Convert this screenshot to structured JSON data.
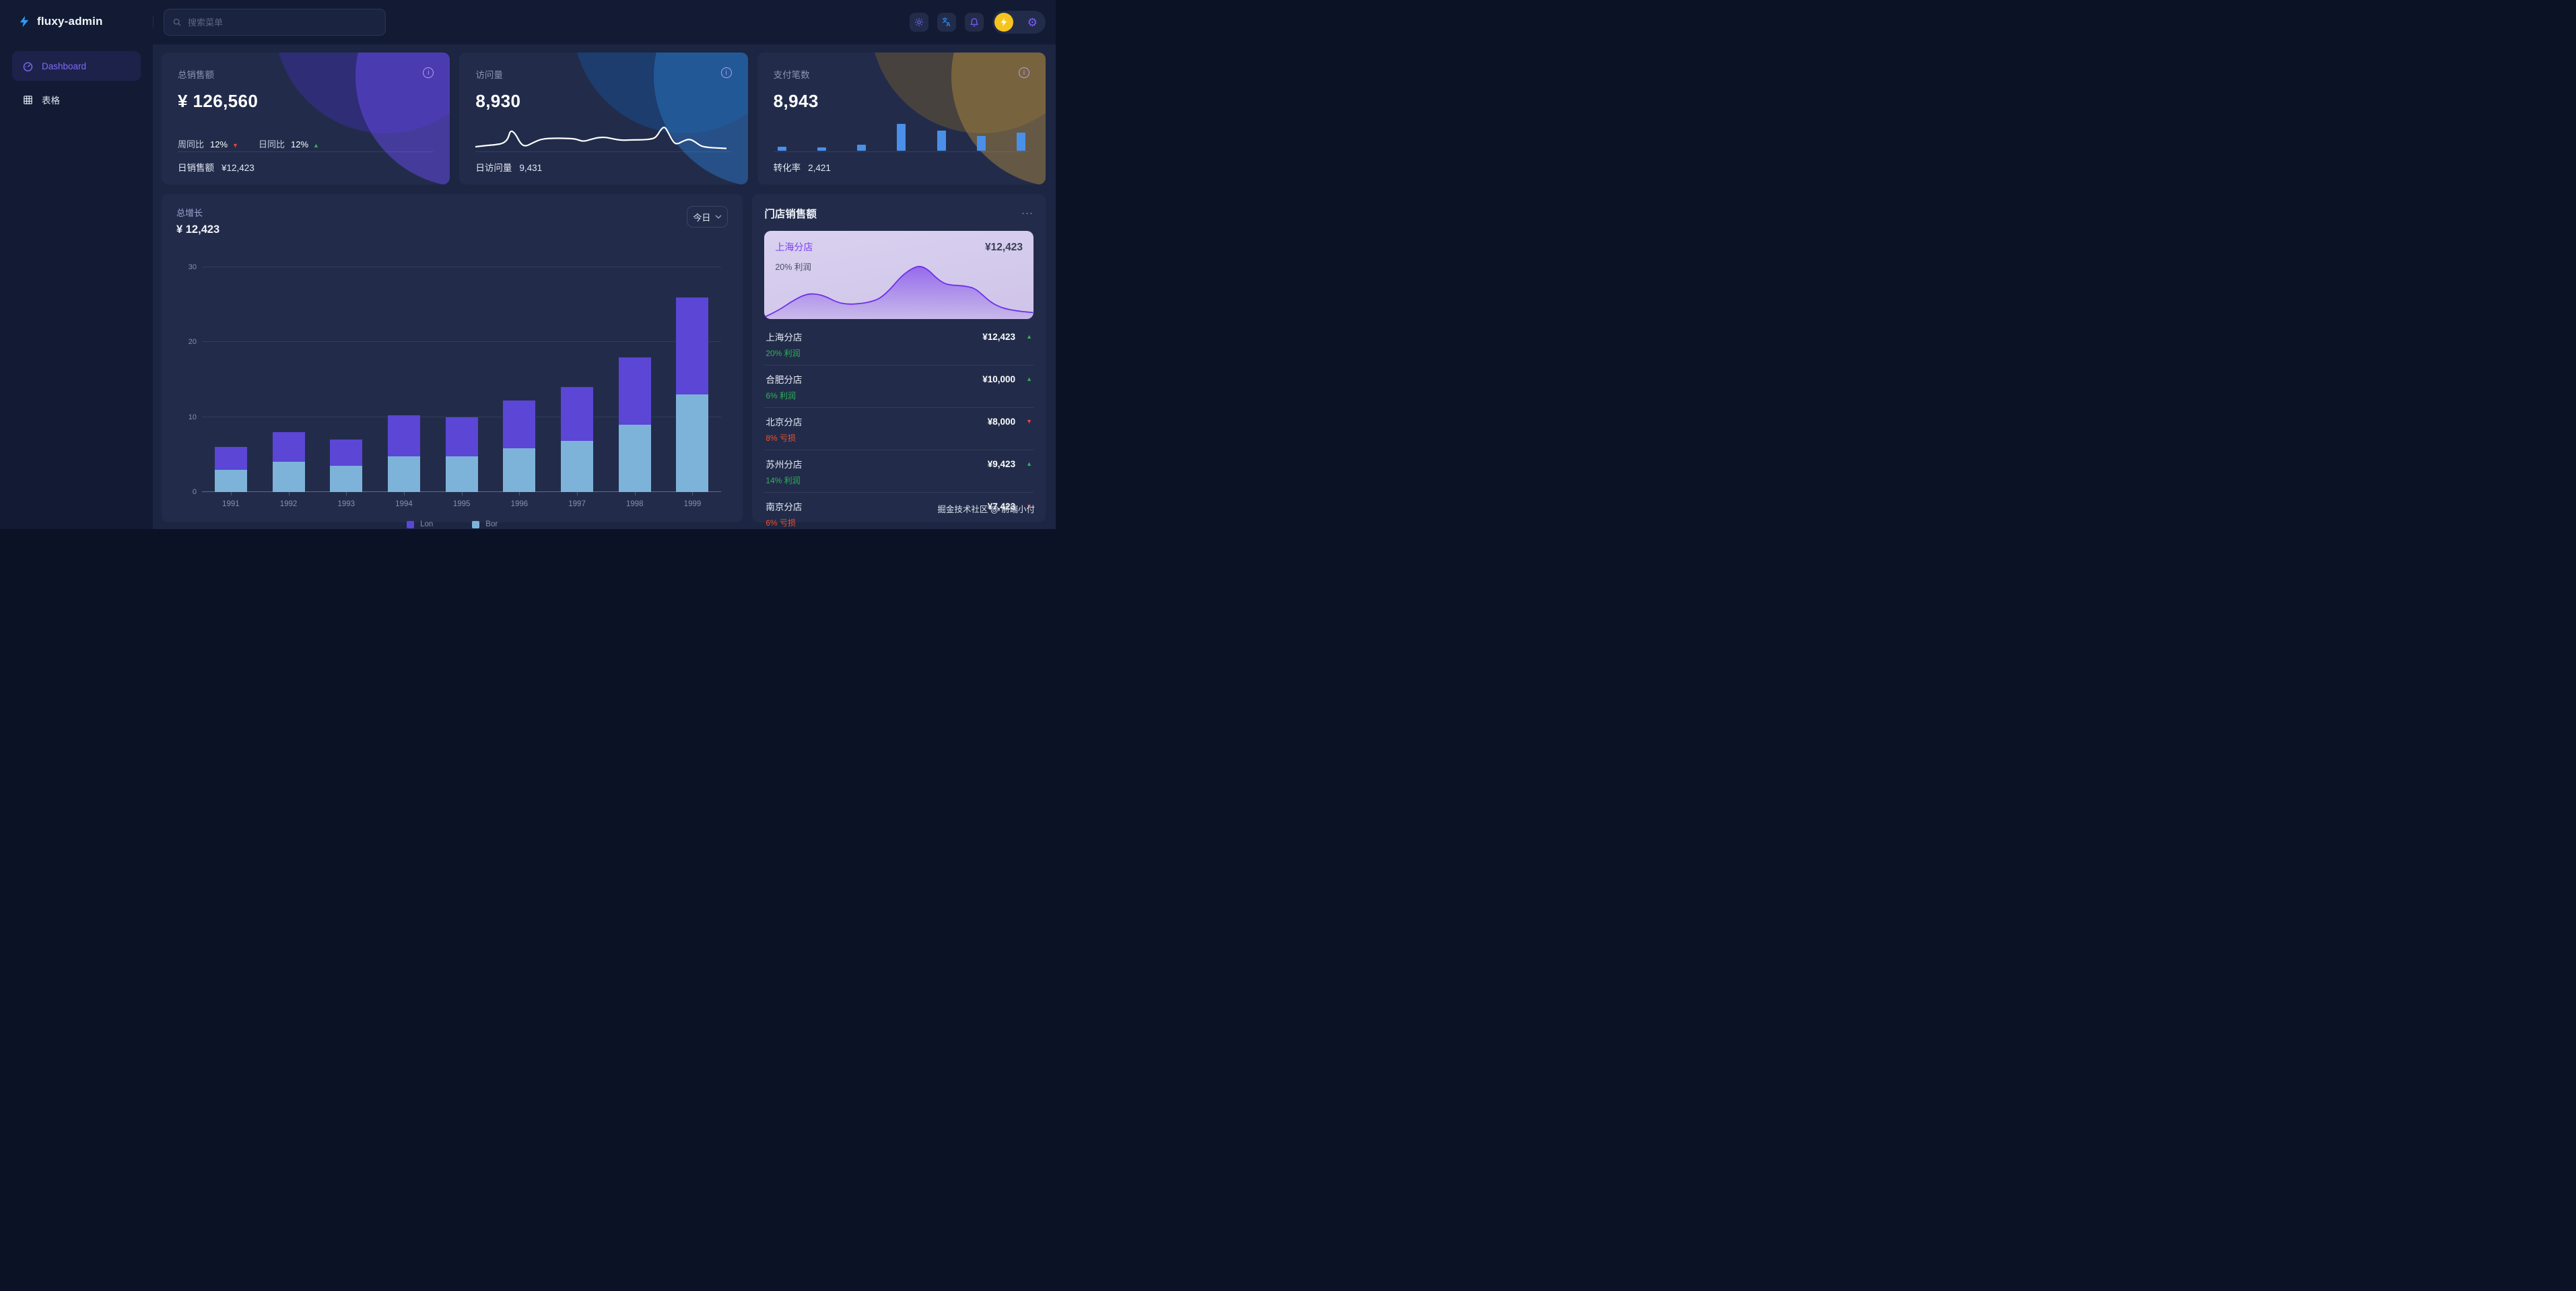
{
  "sidebar": {
    "logo_text": "fluxy-admin",
    "items": [
      {
        "label": "Dashboard",
        "active": true
      },
      {
        "label": "表格",
        "active": false
      }
    ]
  },
  "topbar": {
    "search_placeholder": "搜索菜单",
    "icons": [
      "brightness-icon",
      "translate-icon",
      "bell-icon",
      "lightning-icon",
      "gear-icon"
    ]
  },
  "stat_cards": [
    {
      "title": "总销售额",
      "value": "¥ 126,560",
      "stats": [
        {
          "label": "周同比",
          "value": "12%",
          "trend": "down"
        },
        {
          "label": "日同比",
          "value": "12%",
          "trend": "up"
        }
      ],
      "footer_label": "日销售额",
      "footer_value": "¥12,423"
    },
    {
      "title": "访问量",
      "value": "8,930",
      "footer_label": "日访问量",
      "footer_value": "9,431"
    },
    {
      "title": "支付笔数",
      "value": "8,943",
      "footer_label": "转化率",
      "footer_value": "2,421"
    }
  ],
  "growth": {
    "title": "总增长",
    "value": "¥ 12,423",
    "range_label": "今日"
  },
  "stores": {
    "title": "门店销售额",
    "more_label": "···",
    "featured": {
      "name": "上海分店",
      "value": "¥12,423",
      "profit": "20% 利润"
    },
    "items": [
      {
        "name": "上海分店",
        "value": "¥12,423",
        "profit": "20% 利润",
        "trend": "up"
      },
      {
        "name": "合肥分店",
        "value": "¥10,000",
        "profit": "6% 利润",
        "trend": "up"
      },
      {
        "name": "北京分店",
        "value": "¥8,000",
        "profit": "8% 亏损",
        "trend": "down"
      },
      {
        "name": "苏州分店",
        "value": "¥9,423",
        "profit": "14% 利润",
        "trend": "up"
      },
      {
        "name": "南京分店",
        "value": "¥7,423",
        "profit": "6% 亏损",
        "trend": "down"
      }
    ],
    "watermark": "掘金技术社区 @ 前端小付"
  },
  "chart_data": [
    {
      "id": "growth-stacked-bar",
      "type": "bar",
      "stacked": true,
      "title": "总增长",
      "categories": [
        "1991",
        "1992",
        "1993",
        "1994",
        "1995",
        "1996",
        "1997",
        "1998",
        "1999"
      ],
      "series": [
        {
          "name": "Lon",
          "color": "#5b46d6",
          "values": [
            3,
            4,
            3.5,
            5.4,
            5.2,
            6.4,
            7.2,
            9,
            13
          ]
        },
        {
          "name": "Bor",
          "color": "#7db3d9",
          "values": [
            3,
            4,
            3.5,
            4.8,
            4.8,
            5.8,
            6.8,
            9,
            13
          ]
        }
      ],
      "ylim": [
        0,
        30
      ],
      "yticks": [
        0,
        10,
        20,
        30
      ],
      "grid": true,
      "legend_position": "bottom"
    },
    {
      "id": "visits-sparkline",
      "type": "line",
      "color": "#ffffff",
      "points": [
        [
          0,
          12
        ],
        [
          4,
          17
        ],
        [
          8,
          21
        ],
        [
          11,
          26
        ],
        [
          13,
          45
        ],
        [
          14,
          85
        ],
        [
          16,
          68
        ],
        [
          18,
          25
        ],
        [
          20,
          13
        ],
        [
          23,
          30
        ],
        [
          26,
          44
        ],
        [
          29,
          48
        ],
        [
          33,
          49
        ],
        [
          37,
          48
        ],
        [
          40,
          46
        ],
        [
          43,
          34
        ],
        [
          46,
          44
        ],
        [
          49,
          52
        ],
        [
          52,
          53
        ],
        [
          55,
          46
        ],
        [
          58,
          40
        ],
        [
          61,
          41
        ],
        [
          64,
          42
        ],
        [
          67,
          42
        ],
        [
          70,
          45
        ],
        [
          72,
          52
        ],
        [
          74,
          88
        ],
        [
          75.5,
          100
        ],
        [
          77,
          70
        ],
        [
          79,
          30
        ],
        [
          80.5,
          23
        ],
        [
          83,
          38
        ],
        [
          85.5,
          46
        ],
        [
          88,
          30
        ],
        [
          90,
          14
        ],
        [
          93,
          9
        ],
        [
          96,
          7
        ],
        [
          100,
          5
        ]
      ]
    },
    {
      "id": "payments-mini-bar",
      "type": "bar",
      "color": "#4a8fe8",
      "values": [
        14,
        12,
        22,
        100,
        76,
        55,
        68
      ]
    },
    {
      "id": "store-area",
      "type": "area",
      "line_color": "#6d2fe8",
      "fill_color": "#7c45ec",
      "points": [
        [
          0,
          0
        ],
        [
          5,
          12
        ],
        [
          10,
          30
        ],
        [
          15,
          44
        ],
        [
          19,
          46
        ],
        [
          23,
          40
        ],
        [
          27,
          29
        ],
        [
          31,
          25
        ],
        [
          35,
          26
        ],
        [
          39,
          29
        ],
        [
          43,
          36
        ],
        [
          47,
          55
        ],
        [
          51,
          80
        ],
        [
          55,
          95
        ],
        [
          58,
          100
        ],
        [
          61,
          92
        ],
        [
          64,
          76
        ],
        [
          67,
          65
        ],
        [
          70,
          62
        ],
        [
          74,
          61
        ],
        [
          78,
          57
        ],
        [
          81,
          44
        ],
        [
          84,
          30
        ],
        [
          87,
          21
        ],
        [
          90,
          16
        ],
        [
          94,
          12
        ],
        [
          100,
          9
        ]
      ]
    }
  ]
}
